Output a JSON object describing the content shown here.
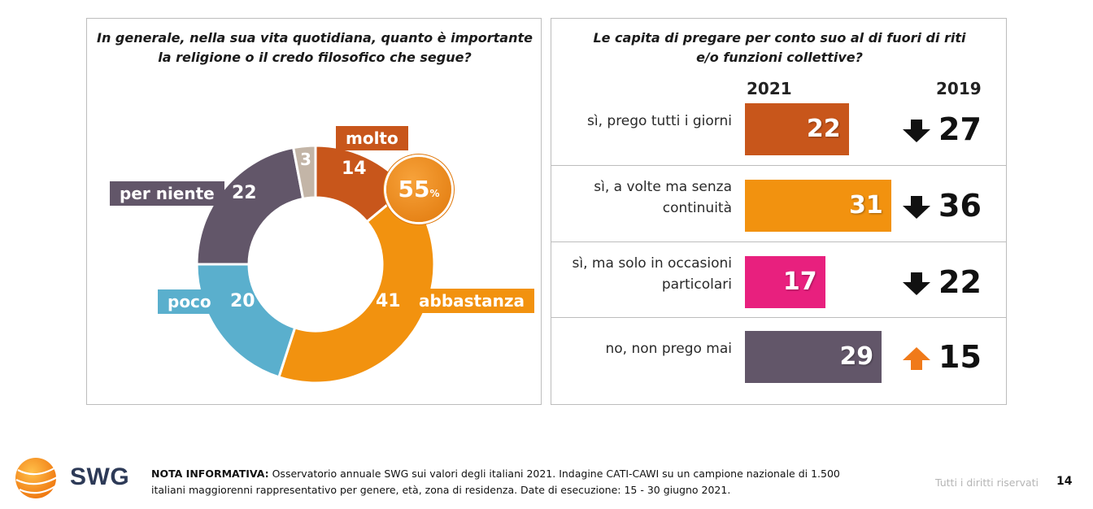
{
  "left_panel": {
    "title": "In generale, nella sua vita quotidiana, quanto è importante\nla religione o il credo filosofico che segue?",
    "callout": {
      "value": "55",
      "unit": "%"
    }
  },
  "right_panel": {
    "title": "Le capita di pregare per conto suo al di fuori di riti\ne/o funzioni collettive?",
    "year_current": "2021",
    "year_previous": "2019"
  },
  "chart_data": [
    {
      "type": "pie",
      "title": "In generale, nella sua vita quotidiana, quanto è importante la religione o il credo filosofico che segue?",
      "categories": [
        "molto",
        "abbastanza",
        "poco",
        "per niente",
        ""
      ],
      "values": [
        14,
        41,
        20,
        22,
        3
      ],
      "colors": [
        "#c8561b",
        "#f2920f",
        "#5aafcd",
        "#625669",
        "#c3b5a7"
      ],
      "labels": {
        "molto": "molto",
        "abbastanza": "abbastanza",
        "poco": "poco",
        "per_niente": "per niente"
      },
      "value_labels": {
        "molto": "14",
        "abbastanza": "41",
        "poco": "20",
        "per_niente": "22",
        "other": "3"
      }
    },
    {
      "type": "bar",
      "title": "Le capita di pregare per conto suo al di fuori di riti e/o funzioni collettive?",
      "categories": [
        "sì, prego tutti i giorni",
        "sì, a volte ma senza\ncontinuità",
        "sì, ma solo in occasioni\nparticolari",
        "no, non prego mai"
      ],
      "series": [
        {
          "name": "2021",
          "values": [
            22,
            31,
            17,
            29
          ],
          "labels": [
            "22",
            "31",
            "17",
            "29"
          ]
        },
        {
          "name": "2019",
          "values": [
            27,
            36,
            22,
            15
          ],
          "labels": [
            "27",
            "36",
            "22",
            "15"
          ]
        }
      ],
      "bar_colors": [
        "#c8561b",
        "#f2920f",
        "#e8207e",
        "#625669"
      ],
      "trend": [
        "down",
        "down",
        "down",
        "up"
      ],
      "trend_colors": {
        "down": "#111111",
        "up": "#f07a1a"
      }
    }
  ],
  "footer": {
    "note_label": "NOTA INFORMATIVA:",
    "note_text": " Osservatorio annuale SWG sui valori degli italiani 2021. Indagine CATI-CAWI su un campione nazionale di 1.500 italiani maggiorenni rappresentativo per genere, età, zona di residenza. Date di esecuzione: 15 - 30 giugno 2021.",
    "rights": "Tutti i diritti riservati",
    "page_number": "14",
    "logo": "SWG"
  },
  "icons": {
    "logo_mark": "swg-globe-icon",
    "down": "arrow-down-icon",
    "up": "arrow-up-icon"
  }
}
